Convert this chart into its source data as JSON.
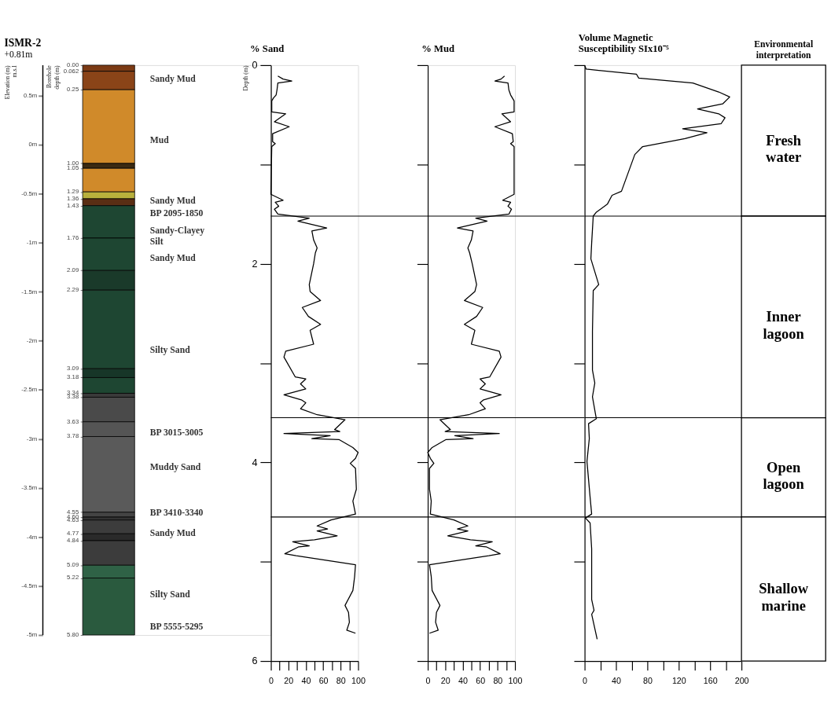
{
  "chart_data": [
    {
      "type": "bar",
      "stacked": true,
      "title": "ISMR-2",
      "subtitle": "+0.81m",
      "ylabel": "Borehole depth (m)",
      "y2label": "Elevation (m) m.s.l",
      "categories": [
        null
      ],
      "series": [
        {
          "color": "#7b3a14",
          "values": [
            0.062
          ]
        },
        {
          "color": "#8a4418",
          "values": [
            0.188
          ]
        },
        {
          "color": "#d08a2a",
          "values": [
            0.75
          ]
        },
        {
          "color": "#3b2a12",
          "values": [
            0.05
          ]
        },
        {
          "color": "#d08a2a",
          "values": [
            0.24
          ]
        },
        {
          "color": "#b8b03c",
          "values": [
            0.07
          ]
        },
        {
          "color": "#5a2e14",
          "values": [
            0.07
          ]
        },
        {
          "color": "#1e4632",
          "values": [
            0.33
          ]
        },
        {
          "color": "#1e4632",
          "values": [
            0.33
          ]
        },
        {
          "color": "#1a3a2a",
          "values": [
            0.2
          ]
        },
        {
          "color": "#1e4632",
          "values": [
            0.8
          ]
        },
        {
          "color": "#173628",
          "values": [
            0.09
          ]
        },
        {
          "color": "#1e4632",
          "values": [
            0.16
          ]
        },
        {
          "color": "#3a3a3a",
          "values": [
            0.04
          ]
        },
        {
          "color": "#4a4a4a",
          "values": [
            0.25
          ]
        },
        {
          "color": "#555555",
          "values": [
            0.15
          ]
        },
        {
          "color": "#5a5a5a",
          "values": [
            0.77
          ]
        },
        {
          "color": "#444444",
          "values": [
            0.05
          ]
        },
        {
          "color": "#333333",
          "values": [
            0.03
          ]
        },
        {
          "color": "#3c3c3c",
          "values": [
            0.14
          ]
        },
        {
          "color": "#2a2a2a",
          "values": [
            0.07
          ]
        },
        {
          "color": "#3c3c3c",
          "values": [
            0.25
          ]
        },
        {
          "color": "#2f6246",
          "values": [
            0.13
          ]
        },
        {
          "color": "#2a5a3e",
          "values": [
            0.58
          ]
        }
      ],
      "ylim": [
        5.8,
        0
      ],
      "yticks": [
        {
          "value": 0,
          "label": "0.00"
        },
        {
          "value": 0.062,
          "label": "0.062"
        },
        {
          "value": 0.25,
          "label": "0.25"
        },
        {
          "value": 1.0,
          "label": "1.00"
        },
        {
          "value": 1.05,
          "label": "1.05"
        },
        {
          "value": 1.29,
          "label": "1.29"
        },
        {
          "value": 1.36,
          "label": "1.36"
        },
        {
          "value": 1.43,
          "label": "1.43"
        },
        {
          "value": 1.76,
          "label": "1.76"
        },
        {
          "value": 2.09,
          "label": "2.09"
        },
        {
          "value": 2.29,
          "label": "2.29"
        },
        {
          "value": 3.09,
          "label": "3.09"
        },
        {
          "value": 3.18,
          "label": "3.18"
        },
        {
          "value": 3.34,
          "label": "3.34"
        },
        {
          "value": 3.38,
          "label": "3.38"
        },
        {
          "value": 3.63,
          "label": "3.63"
        },
        {
          "value": 3.78,
          "label": "3.78"
        },
        {
          "value": 4.55,
          "label": "4.55"
        },
        {
          "value": 4.6,
          "label": "4.60"
        },
        {
          "value": 4.63,
          "label": "4.63"
        },
        {
          "value": 4.77,
          "label": "4.77"
        },
        {
          "value": 4.84,
          "label": "4.84"
        },
        {
          "value": 5.09,
          "label": "5.09"
        },
        {
          "value": 5.22,
          "label": "5.22"
        },
        {
          "value": 5.8,
          "label": "5.80"
        }
      ],
      "y2lim": [
        -5,
        0.81
      ],
      "y2ticks": [
        {
          "value": 0.5,
          "label": "0.5m"
        },
        {
          "value": 0,
          "label": "0m"
        },
        {
          "value": -0.5,
          "label": "-0.5m"
        },
        {
          "value": -1,
          "label": "-1m"
        },
        {
          "value": -1.5,
          "label": "-1.5m"
        },
        {
          "value": -2,
          "label": "-2m"
        },
        {
          "value": -2.5,
          "label": "-2.5m"
        },
        {
          "value": -3,
          "label": "-3m"
        },
        {
          "value": -3.5,
          "label": "-3.5m"
        },
        {
          "value": -4,
          "label": "-4m"
        },
        {
          "value": -4.5,
          "label": "-4.5m"
        },
        {
          "value": -5,
          "label": "-5m"
        }
      ],
      "annotations": [
        "Sandy Mud",
        "Mud",
        "Sandy Mud",
        "BP 2095-1850",
        "Sandy-Clayey Silt",
        "Sandy Mud",
        "Silty Sand",
        "BP 3015-3005",
        "Muddy Sand",
        "BP 3410-3340",
        "Sandy Mud",
        "Silty Sand",
        "BP 5555-5295"
      ]
    },
    {
      "type": "line",
      "title": "% Sand",
      "ylabel": "Depth (m)",
      "xlim": [
        0,
        100
      ],
      "ylim": [
        6,
        0
      ],
      "xticks": [
        0,
        {
          "value": 10,
          "label": null
        },
        20,
        {
          "value": 30,
          "label": null
        },
        40,
        {
          "value": 50,
          "label": null
        },
        60,
        {
          "value": 70,
          "label": null
        },
        80,
        {
          "value": 90,
          "label": null
        },
        100
      ],
      "yticks": [
        0,
        {
          "value": 1,
          "label": null
        },
        2,
        {
          "value": 3,
          "label": null
        },
        4,
        {
          "value": 5,
          "label": null
        },
        6
      ],
      "ref_lines": [
        {
          "axis": "y",
          "value": 1.52,
          "color": "#000000"
        },
        {
          "axis": "y",
          "value": 3.55,
          "color": "#000000"
        },
        {
          "axis": "y",
          "value": 4.55,
          "color": "#000000"
        }
      ],
      "series": [
        {
          "color": "#000000",
          "x": [
            8,
            14,
            24,
            8,
            7,
            6,
            3,
            1,
            1,
            17,
            4,
            21,
            2,
            2,
            5,
            1,
            0,
            14,
            5,
            9,
            4,
            8,
            44,
            31,
            64,
            47,
            49,
            53,
            51,
            49,
            44,
            45,
            57,
            36,
            43,
            57,
            45,
            49,
            17,
            15,
            28,
            40,
            34,
            40,
            15,
            35,
            40,
            34,
            53,
            85,
            73,
            79,
            15,
            68,
            47,
            78,
            94,
            100,
            97,
            91,
            97,
            98,
            94,
            97,
            69,
            53,
            65,
            53,
            76,
            50,
            25,
            44,
            32,
            16,
            29,
            97,
            96,
            94,
            85,
            89,
            90,
            87,
            97
          ],
          "values": [
            0.11,
            0.14,
            0.16,
            0.18,
            0.25,
            0.3,
            0.33,
            0.36,
            0.47,
            0.49,
            0.57,
            0.62,
            0.69,
            0.77,
            0.79,
            0.82,
            1.3,
            1.36,
            1.38,
            1.42,
            1.45,
            1.5,
            1.54,
            1.57,
            1.64,
            1.67,
            1.76,
            1.84,
            1.89,
            2.0,
            2.21,
            2.28,
            2.37,
            2.44,
            2.53,
            2.61,
            2.67,
            2.81,
            2.88,
            2.94,
            3.14,
            3.16,
            3.21,
            3.26,
            3.32,
            3.37,
            3.4,
            3.46,
            3.52,
            3.57,
            3.67,
            3.69,
            3.71,
            3.73,
            3.76,
            3.77,
            3.85,
            3.9,
            3.96,
            4.01,
            4.06,
            4.27,
            4.39,
            4.52,
            4.58,
            4.64,
            4.67,
            4.69,
            4.74,
            4.78,
            4.8,
            4.84,
            4.85,
            4.92,
            4.94,
            5.03,
            5.15,
            5.29,
            5.44,
            5.51,
            5.61,
            5.69,
            5.72
          ]
        }
      ]
    },
    {
      "type": "line",
      "title": "% Mud",
      "xlim": [
        0,
        100
      ],
      "ylim": [
        6,
        0
      ],
      "tick_labels": "x",
      "xticks": [
        0,
        {
          "value": 10,
          "label": null
        },
        20,
        {
          "value": 30,
          "label": null
        },
        40,
        {
          "value": 50,
          "label": null
        },
        60,
        {
          "value": 70,
          "label": null
        },
        80,
        {
          "value": 90,
          "label": null
        },
        100
      ],
      "yticks": [
        0,
        {
          "value": 1,
          "label": null
        },
        2,
        {
          "value": 3,
          "label": null
        },
        4,
        {
          "value": 5,
          "label": null
        },
        6
      ],
      "ref_lines": [
        {
          "axis": "y",
          "value": 1.52,
          "color": "#000000"
        },
        {
          "axis": "y",
          "value": 3.55,
          "color": "#000000"
        },
        {
          "axis": "y",
          "value": 4.55,
          "color": "#000000"
        }
      ],
      "series": [
        {
          "color": "#000000",
          "x": [
            88,
            84,
            77,
            92,
            93,
            95,
            97,
            99,
            99,
            85,
            95,
            77,
            97,
            98,
            95,
            99,
            99,
            86,
            95,
            92,
            96,
            93,
            55,
            68,
            34,
            52,
            50,
            46,
            48,
            51,
            56,
            54,
            42,
            63,
            56,
            42,
            54,
            50,
            82,
            84,
            71,
            60,
            66,
            60,
            84,
            64,
            60,
            66,
            47,
            14,
            26,
            20,
            82,
            31,
            52,
            21,
            5,
            0,
            3,
            7,
            2,
            2,
            4,
            3,
            30,
            46,
            34,
            46,
            23,
            49,
            74,
            55,
            67,
            83,
            70,
            2,
            4,
            5,
            14,
            10,
            9,
            12,
            2
          ],
          "values": [
            0.11,
            0.14,
            0.16,
            0.18,
            0.25,
            0.3,
            0.33,
            0.36,
            0.47,
            0.49,
            0.57,
            0.62,
            0.69,
            0.77,
            0.79,
            0.82,
            1.3,
            1.36,
            1.38,
            1.42,
            1.45,
            1.5,
            1.54,
            1.57,
            1.64,
            1.67,
            1.76,
            1.84,
            1.89,
            2.0,
            2.21,
            2.28,
            2.37,
            2.44,
            2.53,
            2.61,
            2.67,
            2.81,
            2.88,
            2.94,
            3.14,
            3.16,
            3.21,
            3.26,
            3.32,
            3.37,
            3.4,
            3.46,
            3.52,
            3.57,
            3.67,
            3.69,
            3.71,
            3.73,
            3.76,
            3.77,
            3.85,
            3.9,
            3.96,
            4.01,
            4.06,
            4.27,
            4.39,
            4.52,
            4.58,
            4.64,
            4.67,
            4.69,
            4.74,
            4.78,
            4.8,
            4.84,
            4.85,
            4.92,
            4.94,
            5.03,
            5.15,
            5.29,
            5.44,
            5.51,
            5.61,
            5.69,
            5.72
          ]
        }
      ]
    },
    {
      "type": "line",
      "title": "Volume Magnetic Susceptibility SIx10⁻⁵",
      "xlim": [
        0,
        200
      ],
      "ylim": [
        6,
        0
      ],
      "tick_labels": "x",
      "xticks": [
        0,
        {
          "value": 20,
          "label": null
        },
        40,
        {
          "value": 60,
          "label": null
        },
        80,
        {
          "value": 100,
          "label": null
        },
        120,
        {
          "value": 140,
          "label": null
        },
        160,
        {
          "value": 180,
          "label": null
        },
        200
      ],
      "yticks": [
        0,
        {
          "value": 1,
          "label": null
        },
        2,
        {
          "value": 3,
          "label": null
        },
        4,
        {
          "value": 5,
          "label": null
        },
        6
      ],
      "ref_lines": [
        {
          "axis": "y",
          "value": 1.52,
          "color": "#000000"
        },
        {
          "axis": "y",
          "value": 3.55,
          "color": "#000000"
        },
        {
          "axis": "y",
          "value": 4.55,
          "color": "#000000"
        }
      ],
      "series": [
        {
          "color": "#000000",
          "x": [
            0,
            2,
            66,
            69,
            138,
            171,
            185,
            176,
            144,
            171,
            179,
            174,
            125,
            156,
            128,
            74,
            64,
            47,
            35,
            29,
            15,
            11,
            9,
            8,
            18,
            11,
            10,
            10,
            10,
            13,
            10,
            14,
            15,
            5,
            6,
            3,
            7,
            9,
            1,
            7,
            9,
            9,
            12,
            9,
            16
          ],
          "values": [
            0,
            0.04,
            0.09,
            0.13,
            0.18,
            0.27,
            0.32,
            0.39,
            0.44,
            0.49,
            0.53,
            0.59,
            0.64,
            0.68,
            0.74,
            0.82,
            0.9,
            1.27,
            1.31,
            1.4,
            1.48,
            1.52,
            1.79,
            1.95,
            2.21,
            2.27,
            2.68,
            2.89,
            3.07,
            3.2,
            3.34,
            3.52,
            3.56,
            3.61,
            3.76,
            3.99,
            4.35,
            4.52,
            4.56,
            4.61,
            4.87,
            5.38,
            5.49,
            5.53,
            5.78
          ]
        }
      ]
    },
    {
      "type": "other",
      "title": "Environmental interpretation",
      "annotations": [
        "Fresh water",
        "Inner lagoon",
        "Open lagoon",
        "Shallow marine"
      ]
    }
  ]
}
